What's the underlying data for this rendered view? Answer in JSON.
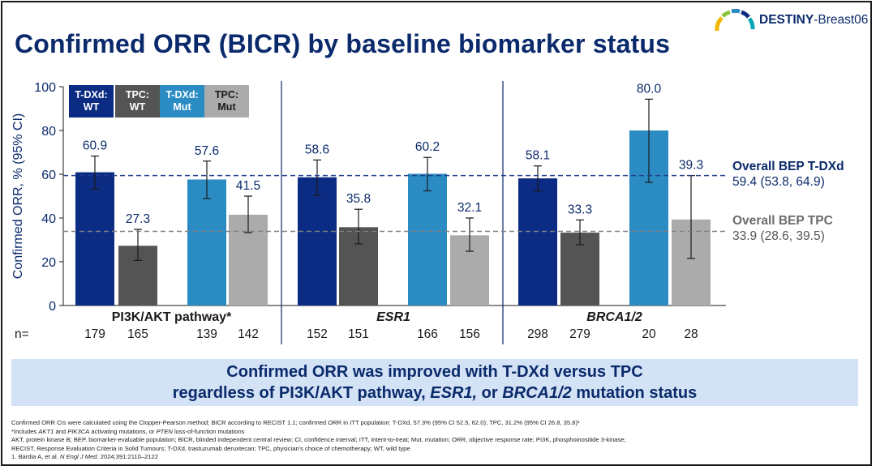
{
  "title": "Confirmed ORR (BICR) by baseline biomarker status",
  "logo": {
    "brand": "DESTINY",
    "suffix": "-Breast06"
  },
  "colors": {
    "tdxd_wt": "#0c2c84",
    "tpc_wt": "#545454",
    "tdxd_mut": "#2b8cc4",
    "tpc_mut": "#ababab",
    "axis": "#0a2a6b",
    "ref_tdxd": "#1f3d8a",
    "ref_tpc": "#7f7f7f"
  },
  "legend": [
    {
      "line1": "T-DXd:",
      "line2": "WT",
      "color": "#0c2c84",
      "text": "#ffffff"
    },
    {
      "line1": "TPC:",
      "line2": "WT",
      "color": "#545454",
      "text": "#ffffff"
    },
    {
      "line1": "T-DXd:",
      "line2": "Mut",
      "color": "#2b8cc4",
      "text": "#ffffff"
    },
    {
      "line1": "TPC:",
      "line2": "Mut",
      "color": "#ababab",
      "text": "#1a1a1a"
    }
  ],
  "chart_data": {
    "type": "bar",
    "title": "Confirmed ORR (BICR) by baseline biomarker status",
    "ylabel": "Confirmed ORR, % (95% CI)",
    "ylim": [
      0,
      100
    ],
    "yticks": [
      0,
      20,
      40,
      60,
      80,
      100
    ],
    "n_label": "n=",
    "groups": [
      {
        "name": "PI3K/AKT pathway*",
        "italic": false,
        "bars": [
          {
            "arm": "T-DXd: WT",
            "value": 60.9,
            "ci": [
              53.2,
              68.3
            ],
            "n": 179
          },
          {
            "arm": "TPC: WT",
            "value": 27.3,
            "ci": [
              20.6,
              34.8
            ],
            "n": 165
          },
          {
            "arm": "T-DXd: Mut",
            "value": 57.6,
            "ci": [
              48.9,
              66.0
            ],
            "n": 139
          },
          {
            "arm": "TPC: Mut",
            "value": 41.5,
            "ci": [
              33.3,
              50.0
            ],
            "n": 142
          }
        ]
      },
      {
        "name": "ESR1",
        "italic": true,
        "bars": [
          {
            "arm": "T-DXd: WT",
            "value": 58.6,
            "ci": [
              50.3,
              66.5
            ],
            "n": 152
          },
          {
            "arm": "TPC: WT",
            "value": 35.8,
            "ci": [
              28.2,
              44.0
            ],
            "n": 151
          },
          {
            "arm": "T-DXd: Mut",
            "value": 60.2,
            "ci": [
              52.4,
              67.7
            ],
            "n": 166
          },
          {
            "arm": "TPC: Mut",
            "value": 32.1,
            "ci": [
              24.8,
              40.0
            ],
            "n": 156
          }
        ]
      },
      {
        "name": "BRCA1/2",
        "italic": true,
        "bars": [
          {
            "arm": "T-DXd: WT",
            "value": 58.1,
            "ci": [
              52.3,
              63.8
            ],
            "n": 298
          },
          {
            "arm": "TPC: WT",
            "value": 33.3,
            "ci": [
              27.8,
              39.1
            ],
            "n": 279
          },
          {
            "arm": "T-DXd: Mut",
            "value": 80.0,
            "ci": [
              56.3,
              94.3
            ],
            "n": 20
          },
          {
            "arm": "TPC: Mut",
            "value": 39.3,
            "ci": [
              21.5,
              59.4
            ],
            "n": 28
          }
        ]
      }
    ],
    "reference_lines": [
      {
        "label": "Overall BEP T-DXd",
        "value": 59.4,
        "ci_text": "59.4 (53.8, 64.9)"
      },
      {
        "label": "Overall BEP TPC",
        "value": 33.9,
        "ci_text": "33.9 (28.6, 39.5)"
      }
    ]
  },
  "banner": {
    "line1": "Confirmed ORR was improved with T-DXd versus TPC",
    "line2_a": "regardless of PI3K/AKT pathway, ",
    "line2_b": "ESR1,",
    "line2_c": " or ",
    "line2_d": "BRCA1/2",
    "line2_e": " mutation status"
  },
  "footnotes": {
    "line1": "Confirmed ORR CIs were calculated using the Clopper-Pearson method; BICR according to RECIST 1.1; confirmed ORR in ITT population: T-DXd, 57.3% (95% CI 52.5, 62.0); TPC, 31.2% (95% CI 26.8, 35.8)¹",
    "line2_a": "*Includes ",
    "line2_b": "AKT1",
    "line2_c": " and ",
    "line2_d": "PIK3CA",
    "line2_e": " activating mutations, or ",
    "line2_f": "PTEN",
    "line2_g": " loss-of-function mutations",
    "line3": "AKT, protein kinase B; BEP, biomarker-evaluable population; BICR, blinded independent central review; CI, confidence interval; ITT, intent-to-treat; Mut, mutation; ORR, objective response rate; PI3K, phosphoinositide 3-kinase;",
    "line4": "RECIST, Response Evaluation Criteria in Solid Tumours; T-DXd, trastuzumab deruxtecan; TPC, physician's choice of chemotherapy; WT, wild type",
    "line5_a": "1. Bardia A, et al. ",
    "line5_b": "N Engl J Med",
    "line5_c": ". 2024;391:2110–2122"
  }
}
